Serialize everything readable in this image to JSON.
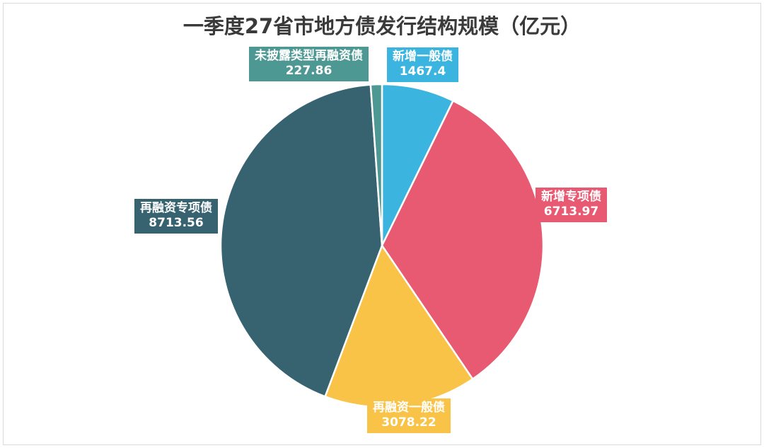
{
  "chart_data": {
    "type": "pie",
    "title": "一季度27省市地方债发行结构规模（亿元）",
    "unit": "亿元",
    "slices": [
      {
        "name": "新增一般债",
        "value": 1467.4,
        "value_label": "1467.4",
        "color": "#3bb5e0"
      },
      {
        "name": "新增专项债",
        "value": 6713.97,
        "value_label": "6713.97",
        "color": "#e85a71"
      },
      {
        "name": "再融资一般债",
        "value": 3078.22,
        "value_label": "3078.22",
        "color": "#f8c346"
      },
      {
        "name": "再融资专项债",
        "value": 8713.56,
        "value_label": "8713.56",
        "color": "#376370"
      },
      {
        "name": "未披露类型再融资债",
        "value": 227.86,
        "value_label": "227.86",
        "color": "#4e9893"
      }
    ],
    "start_angle_deg": 0,
    "direction": "clockwise",
    "legend": "none"
  }
}
